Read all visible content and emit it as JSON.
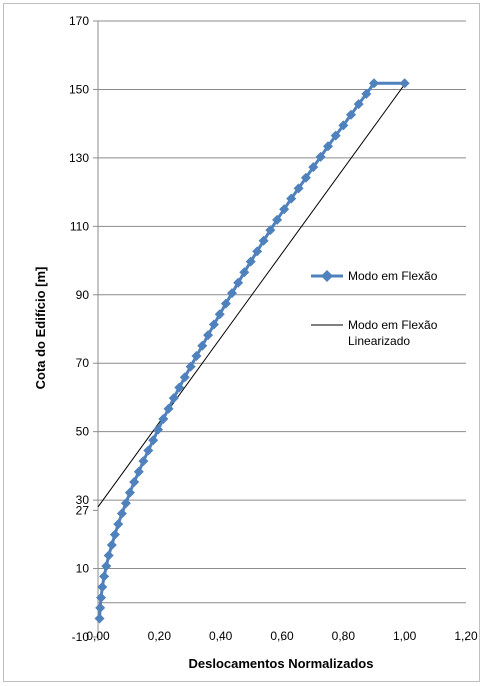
{
  "chart_data": {
    "type": "line",
    "xlabel": "Deslocamentos Normalizados",
    "ylabel": "Cota do Edifício [m]",
    "xlim": [
      0,
      1.2
    ],
    "ylim": [
      -10,
      170
    ],
    "x_ticks": [
      0,
      0.2,
      0.4,
      0.6,
      0.8,
      1.0,
      1.2
    ],
    "x_tick_labels": [
      "0,00",
      "0,20",
      "0,40",
      "0,60",
      "0,80",
      "1,00",
      "1,20"
    ],
    "y_ticks": [
      -10,
      10,
      27,
      30,
      50,
      70,
      90,
      110,
      130,
      150,
      170
    ],
    "y_tick_labels": [
      "-10",
      "10",
      "27",
      "30",
      "50",
      "70",
      "90",
      "110",
      "130",
      "150",
      "170"
    ],
    "y_gridlines": [
      0,
      10,
      30,
      50,
      70,
      90,
      110,
      130,
      150,
      170
    ],
    "grid": true,
    "legend_position": "right",
    "series": [
      {
        "name": "Modo em Flexão",
        "color": "#4f81bd",
        "marker": "diamond",
        "points": [
          [
            0.005,
            -4.6
          ],
          [
            0.007,
            -1.5
          ],
          [
            0.01,
            1.5
          ],
          [
            0.014,
            4.6
          ],
          [
            0.02,
            7.7
          ],
          [
            0.027,
            10.7
          ],
          [
            0.035,
            13.8
          ],
          [
            0.045,
            16.9
          ],
          [
            0.055,
            19.9
          ],
          [
            0.066,
            23.0
          ],
          [
            0.078,
            26.1
          ],
          [
            0.091,
            29.1
          ],
          [
            0.104,
            32.2
          ],
          [
            0.118,
            35.3
          ],
          [
            0.133,
            38.3
          ],
          [
            0.148,
            41.4
          ],
          [
            0.164,
            44.5
          ],
          [
            0.18,
            47.5
          ],
          [
            0.196,
            50.6
          ],
          [
            0.213,
            53.7
          ],
          [
            0.23,
            56.7
          ],
          [
            0.247,
            59.8
          ],
          [
            0.265,
            62.9
          ],
          [
            0.283,
            65.9
          ],
          [
            0.302,
            69.0
          ],
          [
            0.321,
            72.1
          ],
          [
            0.34,
            75.1
          ],
          [
            0.359,
            78.2
          ],
          [
            0.378,
            81.3
          ],
          [
            0.397,
            84.3
          ],
          [
            0.417,
            87.4
          ],
          [
            0.437,
            90.5
          ],
          [
            0.457,
            93.5
          ],
          [
            0.477,
            96.6
          ],
          [
            0.498,
            99.7
          ],
          [
            0.519,
            102.7
          ],
          [
            0.54,
            105.8
          ],
          [
            0.562,
            108.9
          ],
          [
            0.584,
            111.9
          ],
          [
            0.607,
            115.0
          ],
          [
            0.63,
            118.1
          ],
          [
            0.654,
            121.1
          ],
          [
            0.678,
            124.2
          ],
          [
            0.702,
            127.3
          ],
          [
            0.726,
            130.3
          ],
          [
            0.75,
            133.4
          ],
          [
            0.775,
            136.5
          ],
          [
            0.8,
            139.5
          ],
          [
            0.825,
            142.6
          ],
          [
            0.85,
            145.7
          ],
          [
            0.875,
            148.7
          ],
          [
            0.9,
            151.8
          ],
          [
            1.0,
            151.8
          ]
        ]
      },
      {
        "name": "Modo em Flexão Linearizado",
        "color": "#000000",
        "marker": "none",
        "points": [
          [
            0.0,
            28.0
          ],
          [
            1.0,
            151.5
          ]
        ]
      }
    ]
  }
}
